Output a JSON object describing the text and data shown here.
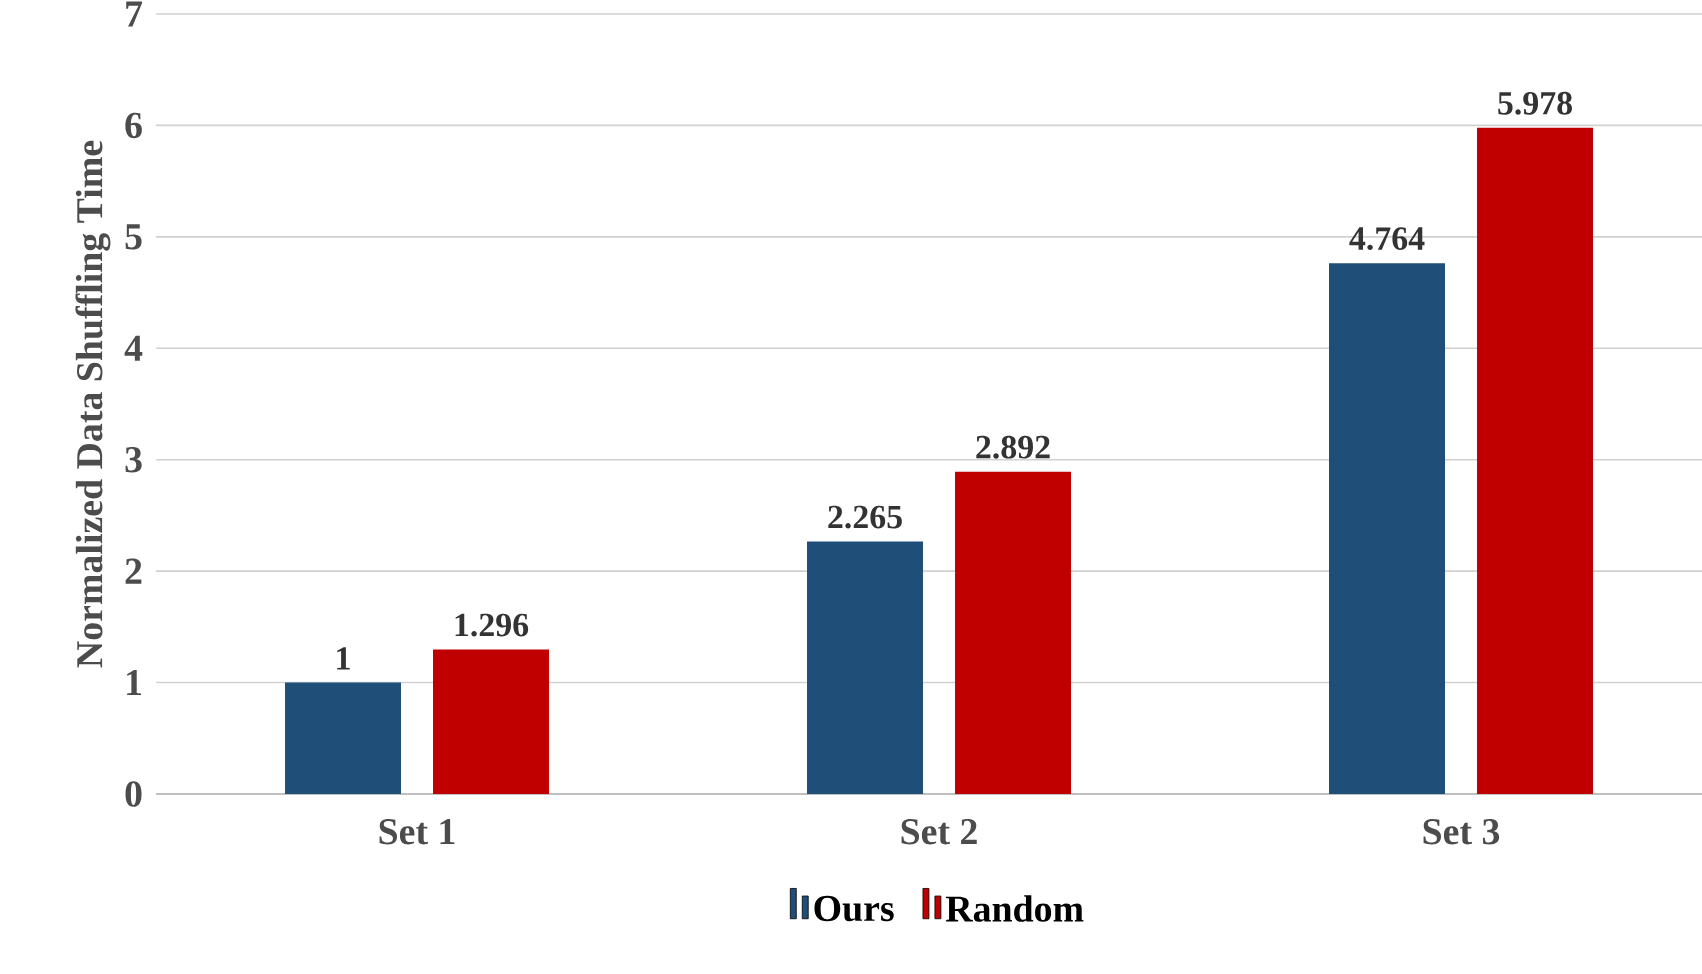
{
  "chart_data": {
    "type": "bar",
    "ylabel": "Normalized Data Shuffling Time",
    "categories": [
      "Set 1",
      "Set 2",
      "Set 3"
    ],
    "series": [
      {
        "name": "Ours",
        "color": "#1f4e79",
        "values": [
          1,
          2.265,
          4.764
        ]
      },
      {
        "name": "Random",
        "color": "#c00000",
        "values": [
          1.296,
          2.892,
          5.978
        ]
      }
    ],
    "ylim": [
      0,
      7
    ],
    "yticks": [
      0,
      1,
      2,
      3,
      4,
      5,
      6,
      7
    ],
    "grid": "y",
    "legend": "bottom",
    "data_labels": true
  }
}
